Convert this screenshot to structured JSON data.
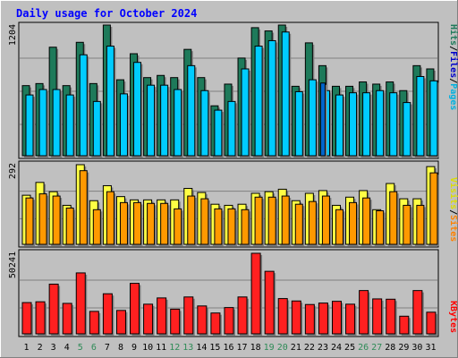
{
  "chart_data": {
    "type": "bar",
    "title": "Daily usage for October 2024",
    "colors": {
      "background": "#c0c0c0",
      "title": "#0000ff",
      "hits": "#1e7a5a",
      "files": "#00ccff",
      "pages": "#00a0cc",
      "visits": "#ffff44",
      "sites": "#ff9900",
      "kbytes": "#ff2020",
      "sites_label": "#ff8000",
      "visits_label": "#dddd00",
      "pages_label": "#00b0e0",
      "files_label": "#0000cc",
      "hits_label": "#1e7a5a",
      "kbytes_label": "#ff0000",
      "weekend_day": "#2e8b57",
      "weekday": "#000000"
    },
    "x": [
      "1",
      "2",
      "3",
      "4",
      "5",
      "6",
      "7",
      "8",
      "9",
      "10",
      "11",
      "12",
      "13",
      "14",
      "15",
      "16",
      "17",
      "18",
      "19",
      "20",
      "21",
      "22",
      "23",
      "24",
      "25",
      "26",
      "27",
      "28",
      "29",
      "30",
      "31"
    ],
    "weekend_days": [
      "5",
      "6",
      "12",
      "13",
      "19",
      "20",
      "26",
      "27"
    ],
    "panels": {
      "hits_files_pages": {
        "ymax_label": "1204",
        "ymax": 1204,
        "legend": {
          "pages": "Pages",
          "sep1": "/",
          "files": "Files",
          "sep2": "/",
          "hits": "Hits"
        },
        "series": [
          {
            "name": "Hits",
            "values": [
              646,
              665,
              1000,
              646,
              1045,
              665,
              1204,
              700,
              940,
              720,
              740,
              720,
              980,
              720,
              460,
              660,
              900,
              1180,
              1150,
              1204,
              640,
              1040,
              830,
              640,
              640,
              680,
              660,
              680,
              600,
              830,
              800
            ]
          },
          {
            "name": "Files",
            "values": [
              560,
              610,
              610,
              560,
              930,
              500,
              1010,
              570,
              860,
              650,
              650,
              610,
              830,
              600,
              420,
              500,
              800,
              1010,
              1060,
              1140,
              590,
              700,
              600,
              560,
              580,
              580,
              600,
              580,
              490,
              730,
              690
            ]
          },
          {
            "name": "Pages",
            "values": [
              0,
              0,
              0,
              0,
              0,
              0,
              0,
              0,
              0,
              0,
              0,
              0,
              0,
              0,
              0,
              0,
              0,
              0,
              0,
              0,
              0,
              0,
              670,
              0,
              0,
              0,
              0,
              0,
              0,
              0,
              0
            ]
          }
        ]
      },
      "sites_visits": {
        "ymax_label": "292",
        "ymax": 292,
        "legend": {
          "sites": "Sites",
          "sep": "/",
          "visits": "Visits"
        },
        "series": [
          {
            "name": "Visits",
            "values": [
              180,
              227,
              193,
              143,
              292,
              160,
              215,
              175,
              163,
              163,
              163,
              163,
              205,
              190,
              147,
              143,
              147,
              187,
              193,
              202,
              160,
              187,
              197,
              143,
              173,
              197,
              127,
              223,
              167,
              167,
              285
            ]
          },
          {
            "name": "Sites",
            "values": [
              170,
              185,
              177,
              133,
              270,
              127,
              193,
              153,
              153,
              150,
              150,
              130,
              177,
              167,
              130,
              130,
              127,
              173,
              173,
              177,
              147,
              157,
              177,
              127,
              153,
              170,
              123,
              193,
              143,
              143,
              262
            ]
          }
        ]
      },
      "kbytes": {
        "ymax_label": "50241",
        "ymax": 50241,
        "legend": {
          "kbytes": "KBytes"
        },
        "series": [
          {
            "name": "KBytes",
            "values": [
              19500,
              20000,
              31000,
              19000,
              38000,
              14000,
              25000,
              14600,
              31500,
              18500,
              22400,
              15400,
              23000,
              17400,
              13000,
              16400,
              23000,
              50241,
              39000,
              22000,
              20500,
              18300,
              19200,
              20300,
              18500,
              27000,
              21800,
              21600,
              11000,
              27000,
              13500
            ]
          }
        ]
      }
    }
  }
}
